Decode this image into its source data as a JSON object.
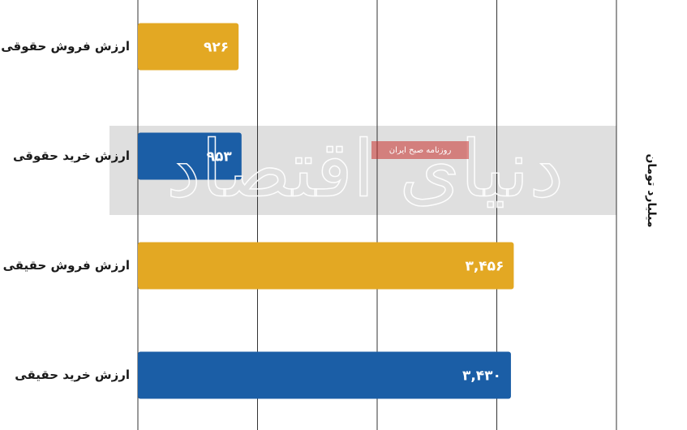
{
  "chart_data": {
    "type": "barh",
    "categories": [
      "ارزش فروش حقوقی",
      "ارزش خرید حقوقی",
      "ارزش فروش حقیقی",
      "ارزش خرید حقیقی"
    ],
    "values": [
      926,
      953,
      3456,
      3430
    ],
    "value_labels": [
      "۹۲۶",
      "۹۵۳",
      "۳,۴۵۶",
      "۳,۴۳۰"
    ],
    "colors": [
      "#e3a823",
      "#1b5ea6",
      "#e3a823",
      "#1b5ea6"
    ],
    "xlim": [
      0,
      4400
    ],
    "xticks": [
      0,
      1100,
      2200,
      3300,
      4400
    ],
    "grid": true,
    "axis_title": "میلیارد تومان",
    "watermark": {
      "title": "دنیای اقتصاد",
      "subtitle": "روزنامه صبح ایران"
    }
  }
}
